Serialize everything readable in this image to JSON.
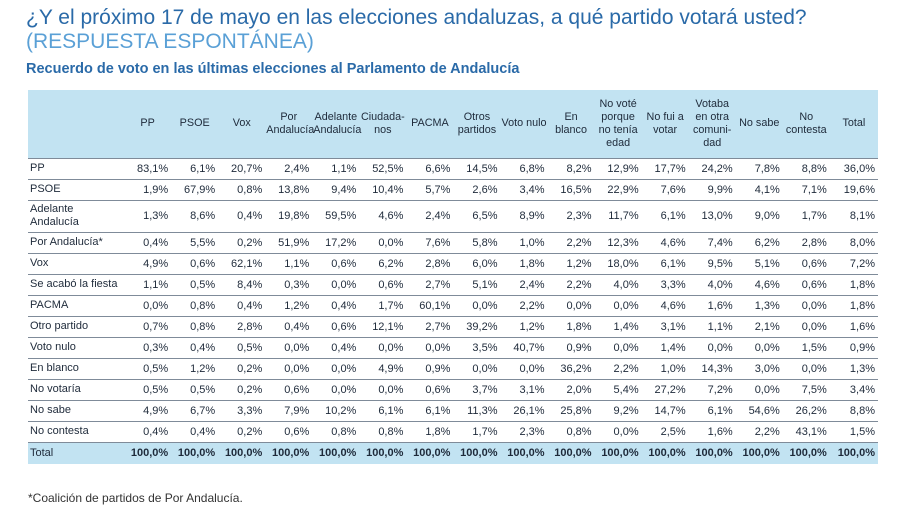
{
  "title": {
    "main": "¿Y el próximo 17 de mayo en las elecciones andaluzas, a qué partido votará usted?",
    "note": "(RESPUESTA ESPONTÁNEA)"
  },
  "subtitle": "Recuerdo de voto en las últimas elecciones al Parlamento de Andalucía",
  "table": {
    "columns": [
      "PP",
      "PSOE",
      "Vox",
      "Por Andalucía",
      "Adelante Andalucía",
      "Ciudada-nos",
      "PACMA",
      "Otros partidos",
      "Voto nulo",
      "En blanco",
      "No voté porque no tenía edad",
      "No fui a votar",
      "Votaba en otra comuni-dad",
      "No sabe",
      "No contesta",
      "Total"
    ],
    "rows": [
      {
        "label": "PP",
        "values": [
          "83,1%",
          "6,1%",
          "20,7%",
          "2,4%",
          "1,1%",
          "52,5%",
          "6,6%",
          "14,5%",
          "6,8%",
          "8,2%",
          "12,9%",
          "17,7%",
          "24,2%",
          "7,8%",
          "8,8%",
          "36,0%"
        ]
      },
      {
        "label": "PSOE",
        "values": [
          "1,9%",
          "67,9%",
          "0,8%",
          "13,8%",
          "9,4%",
          "10,4%",
          "5,7%",
          "2,6%",
          "3,4%",
          "16,5%",
          "22,9%",
          "7,6%",
          "9,9%",
          "4,1%",
          "7,1%",
          "19,6%"
        ]
      },
      {
        "label": "Adelante Andalucía",
        "values": [
          "1,3%",
          "8,6%",
          "0,4%",
          "19,8%",
          "59,5%",
          "4,6%",
          "2,4%",
          "6,5%",
          "8,9%",
          "2,3%",
          "11,7%",
          "6,1%",
          "13,0%",
          "9,0%",
          "1,7%",
          "8,1%"
        ]
      },
      {
        "label": "Por Andalucía*",
        "values": [
          "0,4%",
          "5,5%",
          "0,2%",
          "51,9%",
          "17,2%",
          "0,0%",
          "7,6%",
          "5,8%",
          "1,0%",
          "2,2%",
          "12,3%",
          "4,6%",
          "7,4%",
          "6,2%",
          "2,8%",
          "8,0%"
        ]
      },
      {
        "label": "Vox",
        "values": [
          "4,9%",
          "0,6%",
          "62,1%",
          "1,1%",
          "0,6%",
          "6,2%",
          "2,8%",
          "6,0%",
          "1,8%",
          "1,2%",
          "18,0%",
          "6,1%",
          "9,5%",
          "5,1%",
          "0,6%",
          "7,2%"
        ]
      },
      {
        "label": "Se acabó la fiesta",
        "values": [
          "1,1%",
          "0,5%",
          "8,4%",
          "0,3%",
          "0,0%",
          "0,6%",
          "2,7%",
          "5,1%",
          "2,4%",
          "2,2%",
          "4,0%",
          "3,3%",
          "4,0%",
          "4,6%",
          "0,6%",
          "1,8%"
        ]
      },
      {
        "label": "PACMA",
        "values": [
          "0,0%",
          "0,8%",
          "0,4%",
          "1,2%",
          "0,4%",
          "1,7%",
          "60,1%",
          "0,0%",
          "2,2%",
          "0,0%",
          "0,0%",
          "4,6%",
          "1,6%",
          "1,3%",
          "0,0%",
          "1,8%"
        ]
      },
      {
        "label": "Otro partido",
        "values": [
          "0,7%",
          "0,8%",
          "2,8%",
          "0,4%",
          "0,6%",
          "12,1%",
          "2,7%",
          "39,2%",
          "1,2%",
          "1,8%",
          "1,4%",
          "3,1%",
          "1,1%",
          "2,1%",
          "0,0%",
          "1,6%"
        ]
      },
      {
        "label": "Voto nulo",
        "values": [
          "0,3%",
          "0,4%",
          "0,5%",
          "0,0%",
          "0,4%",
          "0,0%",
          "0,0%",
          "3,5%",
          "40,7%",
          "0,9%",
          "0,0%",
          "1,4%",
          "0,0%",
          "0,0%",
          "1,5%",
          "0,9%"
        ]
      },
      {
        "label": "En blanco",
        "values": [
          "0,5%",
          "1,2%",
          "0,2%",
          "0,0%",
          "0,0%",
          "4,9%",
          "0,9%",
          "0,0%",
          "0,0%",
          "36,2%",
          "2,2%",
          "1,0%",
          "14,3%",
          "3,0%",
          "0,0%",
          "1,3%"
        ]
      },
      {
        "label": "No votaría",
        "values": [
          "0,5%",
          "0,5%",
          "0,2%",
          "0,6%",
          "0,0%",
          "0,0%",
          "0,6%",
          "3,7%",
          "3,1%",
          "2,0%",
          "5,4%",
          "27,2%",
          "7,2%",
          "0,0%",
          "7,5%",
          "3,4%"
        ]
      },
      {
        "label": "No sabe",
        "values": [
          "4,9%",
          "6,7%",
          "3,3%",
          "7,9%",
          "10,2%",
          "6,1%",
          "6,1%",
          "11,3%",
          "26,1%",
          "25,8%",
          "9,2%",
          "14,7%",
          "6,1%",
          "54,6%",
          "26,2%",
          "8,8%"
        ]
      },
      {
        "label": "No contesta",
        "values": [
          "0,4%",
          "0,4%",
          "0,2%",
          "0,6%",
          "0,8%",
          "0,8%",
          "1,8%",
          "1,7%",
          "2,3%",
          "0,8%",
          "0,0%",
          "2,5%",
          "1,6%",
          "2,2%",
          "43,1%",
          "1,5%"
        ]
      }
    ],
    "total": {
      "label": "Total",
      "values": [
        "100,0%",
        "100,0%",
        "100,0%",
        "100,0%",
        "100,0%",
        "100,0%",
        "100,0%",
        "100,0%",
        "100,0%",
        "100,0%",
        "100,0%",
        "100,0%",
        "100,0%",
        "100,0%",
        "100,0%",
        "100,0%"
      ]
    }
  },
  "footnote": "*Coalición de partidos de Por Andalucía."
}
